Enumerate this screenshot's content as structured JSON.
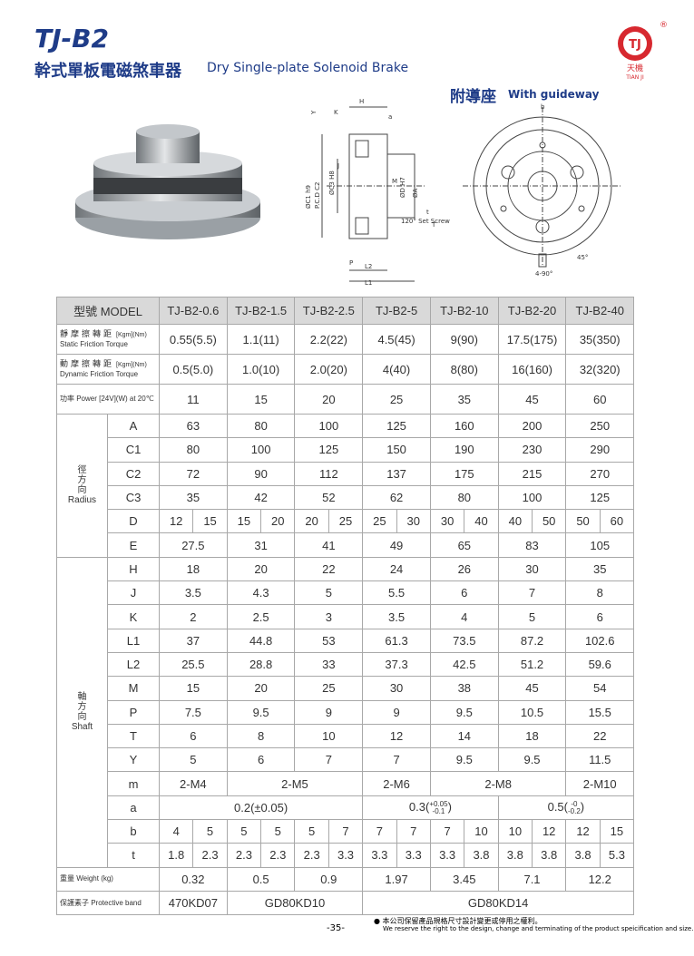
{
  "header": {
    "title": "TJ-B2",
    "subtitle_zh": "幹式單板電磁煞車器",
    "subtitle_en": "Dry Single-plate Solenoid Brake",
    "guideway_zh": "附導座",
    "guideway_en": "With guideway"
  },
  "logo": {
    "mark": "TJ",
    "name_zh": "天機",
    "name_en": "TIAN JI",
    "registered": "®"
  },
  "diagram_labels": {
    "side_view": [
      "H",
      "K",
      "a",
      "J",
      "Y",
      "ØC1 h9",
      "P.C.D C2",
      "ØC3 H8",
      "M",
      "ØD H7",
      "ØA",
      "120° Set Screw",
      "t",
      "T",
      "P",
      "L2",
      "L1"
    ],
    "front_view": [
      "b",
      "45°",
      "4-90°"
    ]
  },
  "table": {
    "header": {
      "label": "型號 MODEL",
      "models": [
        "TJ-B2-0.6",
        "TJ-B2-1.5",
        "TJ-B2-2.5",
        "TJ-B2-5",
        "TJ-B2-10",
        "TJ-B2-20",
        "TJ-B2-40"
      ]
    },
    "rows": [
      {
        "label": {
          "zh": "靜摩擦轉距",
          "en": "Static Friction Torque",
          "unit": "[Kgm](Nm)"
        },
        "cells": [
          "0.55(5.5)",
          "1.1(11)",
          "2.2(22)",
          "4.5(45)",
          "9(90)",
          "17.5(175)",
          "35(350)"
        ]
      },
      {
        "label": {
          "zh": "動摩擦轉距",
          "en": "Dynamic Friction Torque",
          "unit": "[Kgm](Nm)"
        },
        "cells": [
          "0.5(5.0)",
          "1.0(10)",
          "2.0(20)",
          "4(40)",
          "8(80)",
          "16(160)",
          "32(320)"
        ]
      },
      {
        "label": "功率 Power [24V](W) at 20℃",
        "cells": [
          "11",
          "15",
          "20",
          "25",
          "35",
          "45",
          "60"
        ]
      },
      {
        "zh": "徑方向",
        "en": "Radius",
        "rows": [
          {
            "label": "A",
            "cells": [
              "63",
              "80",
              "100",
              "125",
              "160",
              "200",
              "250"
            ]
          },
          {
            "label": "C1",
            "cells": [
              "80",
              "100",
              "125",
              "150",
              "190",
              "230",
              "290"
            ]
          },
          {
            "label": "C2",
            "cells": [
              "72",
              "90",
              "112",
              "137",
              "175",
              "215",
              "270"
            ]
          },
          {
            "label": "C3",
            "cells": [
              "35",
              "42",
              "52",
              "62",
              "80",
              "100",
              "125"
            ]
          },
          {
            "label": "D",
            "cells": [
              "12",
              "15",
              "15",
              "20",
              "20",
              "25",
              "25",
              "30",
              "30",
              "40",
              "40",
              "50",
              "50",
              "60"
            ]
          },
          {
            "label": "E",
            "cells": [
              "27.5",
              "31",
              "41",
              "49",
              "65",
              "83",
              "105"
            ]
          }
        ]
      },
      {
        "zh": "軸方向",
        "en": "Shaft",
        "rows": [
          {
            "label": "H",
            "cells": [
              "18",
              "20",
              "22",
              "24",
              "26",
              "30",
              "35"
            ]
          },
          {
            "label": "J",
            "cells": [
              "3.5",
              "4.3",
              "5",
              "5.5",
              "6",
              "7",
              "8"
            ]
          },
          {
            "label": "K",
            "cells": [
              "2",
              "2.5",
              "3",
              "3.5",
              "4",
              "5",
              "6"
            ]
          },
          {
            "label": "L1",
            "cells": [
              "37",
              "44.8",
              "53",
              "61.3",
              "73.5",
              "87.2",
              "102.6"
            ]
          },
          {
            "label": "L2",
            "cells": [
              "25.5",
              "28.8",
              "33",
              "37.3",
              "42.5",
              "51.2",
              "59.6"
            ]
          },
          {
            "label": "M",
            "cells": [
              "15",
              "20",
              "25",
              "30",
              "38",
              "45",
              "54"
            ]
          },
          {
            "label": "P",
            "cells": [
              "7.5",
              "9.5",
              "9",
              "9",
              "9.5",
              "10.5",
              "15.5"
            ]
          },
          {
            "label": "T",
            "cells": [
              "6",
              "8",
              "10",
              "12",
              "14",
              "18",
              "22"
            ]
          },
          {
            "label": "Y",
            "cells": [
              "5",
              "6",
              "7",
              "7",
              "9.5",
              "9.5",
              "11.5"
            ]
          },
          {
            "label": "m",
            "cells": [
              "2-M4",
              "2-M5",
              "2-M6",
              "2-M8",
              "2-M10"
            ]
          },
          {
            "label": "a",
            "cells": [
              "0.2(±0.05)",
              {
                "before": "0.3(",
                "upper": "+0.05",
                "lower": "-0.1",
                "after": ")"
              },
              {
                "before": "0.5(",
                "upper": "-0",
                "lower": "-0.2",
                "after": ")"
              }
            ]
          },
          {
            "label": "b",
            "cells": [
              "4",
              "5",
              "5",
              "5",
              "5",
              "7",
              "7",
              "7",
              "7",
              "10",
              "10",
              "12",
              "12",
              "15"
            ]
          },
          {
            "label": "t",
            "cells": [
              "1.8",
              "2.3",
              "2.3",
              "2.3",
              "2.3",
              "3.3",
              "3.3",
              "3.3",
              "3.3",
              "3.8",
              "3.8",
              "3.8",
              "3.8",
              "5.3"
            ]
          }
        ]
      },
      {
        "label": "重量 Weight (kg)",
        "cells": [
          "0.32",
          "0.5",
          "0.9",
          "1.97",
          "3.45",
          "7.1",
          "12.2"
        ]
      },
      {
        "label": "保護素子 Protective band",
        "cells": [
          "470KD07",
          "GD80KD10",
          "GD80KD14"
        ]
      }
    ]
  },
  "footer": {
    "page": "-35-",
    "note_zh": "● 本公司保留產品規格尺寸設計變更或停用之權利。",
    "note_en": "We reserve the right to the design, change and terminating of the product speicification and size."
  }
}
